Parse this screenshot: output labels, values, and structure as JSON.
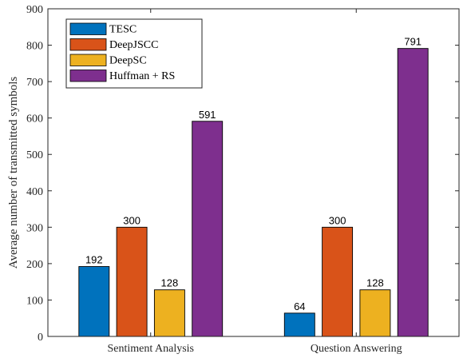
{
  "chart_data": {
    "type": "bar",
    "categories": [
      "Sentiment Analysis",
      "Question Answering"
    ],
    "series": [
      {
        "name": "TESC",
        "values": [
          192,
          64
        ],
        "color": "#0072BD"
      },
      {
        "name": "DeepJSCC",
        "values": [
          300,
          300
        ],
        "color": "#D95319"
      },
      {
        "name": "DeepSC",
        "values": [
          128,
          128
        ],
        "color": "#EDB120"
      },
      {
        "name": "Huffman + RS",
        "values": [
          591,
          791
        ],
        "color": "#7E2F8E"
      }
    ],
    "data_labels": true,
    "title": "",
    "xlabel": "",
    "ylabel": "Average number of transmitted symbols",
    "ylim": [
      0,
      900
    ],
    "yticks": [
      0,
      100,
      200,
      300,
      400,
      500,
      600,
      700,
      800,
      900
    ],
    "grid": false,
    "legend_position": "top-left"
  }
}
